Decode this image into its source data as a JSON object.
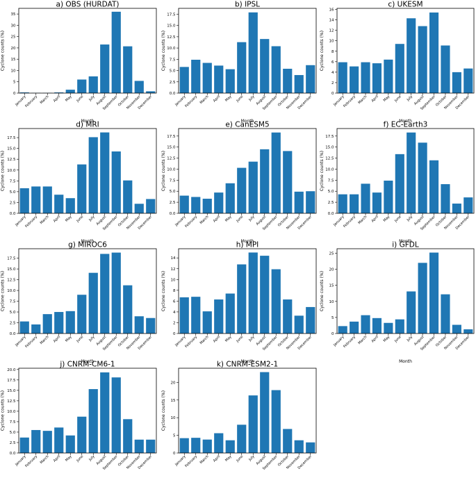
{
  "chart_data": [
    {
      "type": "bar",
      "title": "a) OBS (HURDAT)",
      "xlabel": "Month",
      "ylabel": "Cyclone counts (%)",
      "categories": [
        "January",
        "February",
        "March",
        "April",
        "May",
        "June",
        "July",
        "August",
        "September",
        "October",
        "November",
        "December"
      ],
      "values": [
        0.3,
        0.1,
        0.1,
        0.3,
        1.5,
        6.0,
        7.4,
        21.5,
        36.0,
        20.7,
        5.4,
        0.8
      ],
      "ylim": [
        0,
        37.5
      ],
      "yticks": [
        0,
        5,
        10,
        15,
        20,
        25,
        30,
        35
      ],
      "ytick_labels": [
        "0",
        "5",
        "10",
        "15",
        "20",
        "25",
        "30",
        "35"
      ],
      "color": "#1f77b4"
    },
    {
      "type": "bar",
      "title": "b)  IPSL",
      "xlabel": "Month",
      "ylabel": "Cyclone counts (%)",
      "categories": [
        "January",
        "February",
        "March",
        "April",
        "May",
        "June",
        "July",
        "August",
        "September",
        "October",
        "November",
        "December"
      ],
      "values": [
        5.8,
        7.4,
        6.7,
        6.1,
        5.3,
        11.3,
        17.9,
        12.0,
        10.4,
        5.4,
        4.0,
        6.2
      ],
      "ylim": [
        0,
        18.8
      ],
      "yticks": [
        0,
        2.5,
        5,
        7.5,
        10,
        12.5,
        15,
        17.5
      ],
      "ytick_labels": [
        "0.0",
        "2.5",
        "5.0",
        "7.5",
        "10.0",
        "12.5",
        "15.0",
        "17.5"
      ],
      "color": "#1f77b4"
    },
    {
      "type": "bar",
      "title": "c)  UKESM",
      "xlabel": "Month",
      "ylabel": "Cyclone counts (%)",
      "categories": [
        "January",
        "February",
        "March",
        "April",
        "May",
        "June",
        "July",
        "August",
        "September",
        "October",
        "November",
        "December"
      ],
      "values": [
        5.9,
        5.1,
        5.9,
        5.7,
        6.4,
        9.4,
        14.3,
        12.8,
        15.4,
        9.1,
        4.0,
        4.7
      ],
      "ylim": [
        0,
        16.2
      ],
      "yticks": [
        0,
        2,
        4,
        6,
        8,
        10,
        12,
        14,
        16
      ],
      "ytick_labels": [
        "0",
        "2",
        "4",
        "6",
        "8",
        "10",
        "12",
        "14",
        "16"
      ],
      "color": "#1f77b4"
    },
    {
      "type": "bar",
      "title": "d)  MRI",
      "xlabel": "Month",
      "ylabel": "Cyclone counts (%)",
      "categories": [
        "January",
        "February",
        "March",
        "April",
        "May",
        "June",
        "July",
        "August",
        "September",
        "October",
        "November",
        "December"
      ],
      "values": [
        5.8,
        6.2,
        6.2,
        4.3,
        3.5,
        11.3,
        17.6,
        18.7,
        14.3,
        7.6,
        2.2,
        3.3
      ],
      "ylim": [
        0,
        19.6
      ],
      "yticks": [
        0,
        2.5,
        5,
        7.5,
        10,
        12.5,
        15,
        17.5
      ],
      "ytick_labels": [
        "0.0",
        "2.5",
        "5.0",
        "7.5",
        "10.0",
        "12.5",
        "15.0",
        "17.5"
      ],
      "color": "#1f77b4"
    },
    {
      "type": "bar",
      "title": "e)  CanESM5",
      "xlabel": "Month",
      "ylabel": "Cyclone counts (%)",
      "categories": [
        "January",
        "February",
        "March",
        "April",
        "May",
        "June",
        "July",
        "August",
        "September",
        "October",
        "November",
        "December"
      ],
      "values": [
        4.0,
        3.7,
        3.3,
        4.7,
        6.8,
        10.3,
        11.7,
        14.5,
        18.3,
        14.1,
        4.9,
        5.0
      ],
      "ylim": [
        0,
        19.2
      ],
      "yticks": [
        0,
        2.5,
        5,
        7.5,
        10,
        12.5,
        15,
        17.5
      ],
      "ytick_labels": [
        "0.0",
        "2.5",
        "5.0",
        "7.5",
        "10.0",
        "12.5",
        "15.0",
        "17.5"
      ],
      "color": "#1f77b4"
    },
    {
      "type": "bar",
      "title": "f)  EC-Earth3",
      "xlabel": "Month",
      "ylabel": "Cyclone counts (%)",
      "categories": [
        "January",
        "February",
        "March",
        "April",
        "May",
        "June",
        "July",
        "August",
        "September",
        "October",
        "November",
        "December"
      ],
      "values": [
        4.3,
        4.3,
        6.7,
        4.7,
        7.4,
        13.4,
        18.3,
        16.0,
        12.0,
        6.6,
        2.2,
        3.6
      ],
      "ylim": [
        0,
        19.2
      ],
      "yticks": [
        0,
        2.5,
        5,
        7.5,
        10,
        12.5,
        15,
        17.5
      ],
      "ytick_labels": [
        "0.0",
        "2.5",
        "5.0",
        "7.5",
        "10.0",
        "12.5",
        "15.0",
        "17.5"
      ],
      "color": "#1f77b4"
    },
    {
      "type": "bar",
      "title": "g)  MIROC6",
      "xlabel": "Month",
      "ylabel": "Cyclone counts (%)",
      "categories": [
        "January",
        "February",
        "March",
        "April",
        "May",
        "June",
        "July",
        "August",
        "September",
        "October",
        "November",
        "December"
      ],
      "values": [
        2.8,
        2.1,
        4.5,
        5.0,
        5.2,
        9.0,
        14.1,
        18.5,
        18.8,
        11.2,
        4.0,
        3.6
      ],
      "ylim": [
        0,
        19.7
      ],
      "yticks": [
        0,
        2.5,
        5,
        7.5,
        10,
        12.5,
        15,
        17.5
      ],
      "ytick_labels": [
        "0.0",
        "2.5",
        "5.0",
        "7.5",
        "10.0",
        "12.5",
        "15.0",
        "17.5"
      ],
      "color": "#1f77b4"
    },
    {
      "type": "bar",
      "title": "h)  MPI",
      "xlabel": "Month",
      "ylabel": "Cyclone counts (%)",
      "categories": [
        "January",
        "February",
        "March",
        "April",
        "May",
        "June",
        "July",
        "August",
        "September",
        "October",
        "November",
        "December"
      ],
      "values": [
        6.7,
        6.8,
        4.1,
        6.3,
        7.4,
        12.8,
        15.0,
        14.4,
        11.9,
        6.3,
        3.3,
        4.9
      ],
      "ylim": [
        0,
        15.7
      ],
      "yticks": [
        0,
        2,
        4,
        6,
        8,
        10,
        12,
        14
      ],
      "ytick_labels": [
        "0",
        "2",
        "4",
        "6",
        "8",
        "10",
        "12",
        "14"
      ],
      "color": "#1f77b4"
    },
    {
      "type": "bar",
      "title": "i)  GFDL",
      "xlabel": "Month",
      "ylabel": "Cyclone counts (%)",
      "categories": [
        "January",
        "February",
        "March",
        "April",
        "May",
        "June",
        "July",
        "August",
        "September",
        "October",
        "November",
        "December"
      ],
      "values": [
        2.3,
        3.7,
        5.7,
        4.8,
        3.3,
        4.4,
        13.1,
        22.0,
        25.2,
        12.2,
        2.7,
        1.3
      ],
      "ylim": [
        0,
        26.4
      ],
      "yticks": [
        0,
        5,
        10,
        15,
        20,
        25
      ],
      "ytick_labels": [
        "0",
        "5",
        "10",
        "15",
        "20",
        "25"
      ],
      "color": "#1f77b4"
    },
    {
      "type": "bar",
      "title": "j)  CNRM-CM6-1",
      "xlabel": "Month",
      "ylabel": "Cyclone counts (%)",
      "categories": [
        "January",
        "February",
        "March",
        "April",
        "May",
        "June",
        "July",
        "August",
        "September",
        "October",
        "November",
        "December"
      ],
      "values": [
        3.7,
        5.5,
        5.3,
        6.1,
        4.2,
        8.7,
        15.3,
        19.3,
        18.1,
        8.1,
        3.2,
        3.2
      ],
      "ylim": [
        0,
        20.3
      ],
      "yticks": [
        0,
        2.5,
        5,
        7.5,
        10,
        12.5,
        15,
        17.5,
        20
      ],
      "ytick_labels": [
        "0.0",
        "2.5",
        "5.0",
        "7.5",
        "10.0",
        "12.5",
        "15.0",
        "17.5",
        "20.0"
      ],
      "color": "#1f77b4"
    },
    {
      "type": "bar",
      "title": "k)  CNRM-ESM2-1",
      "xlabel": "Month",
      "ylabel": "Cyclone counts (%)",
      "categories": [
        "January",
        "February",
        "March",
        "April",
        "May",
        "June",
        "July",
        "August",
        "September",
        "October",
        "November",
        "December"
      ],
      "values": [
        4.2,
        4.3,
        3.8,
        5.6,
        3.6,
        8.0,
        16.3,
        22.9,
        17.8,
        6.8,
        3.6,
        3.0
      ],
      "ylim": [
        0,
        24.0
      ],
      "yticks": [
        0,
        5,
        10,
        15,
        20
      ],
      "ytick_labels": [
        "0",
        "5",
        "10",
        "15",
        "20"
      ],
      "color": "#1f77b4"
    }
  ]
}
